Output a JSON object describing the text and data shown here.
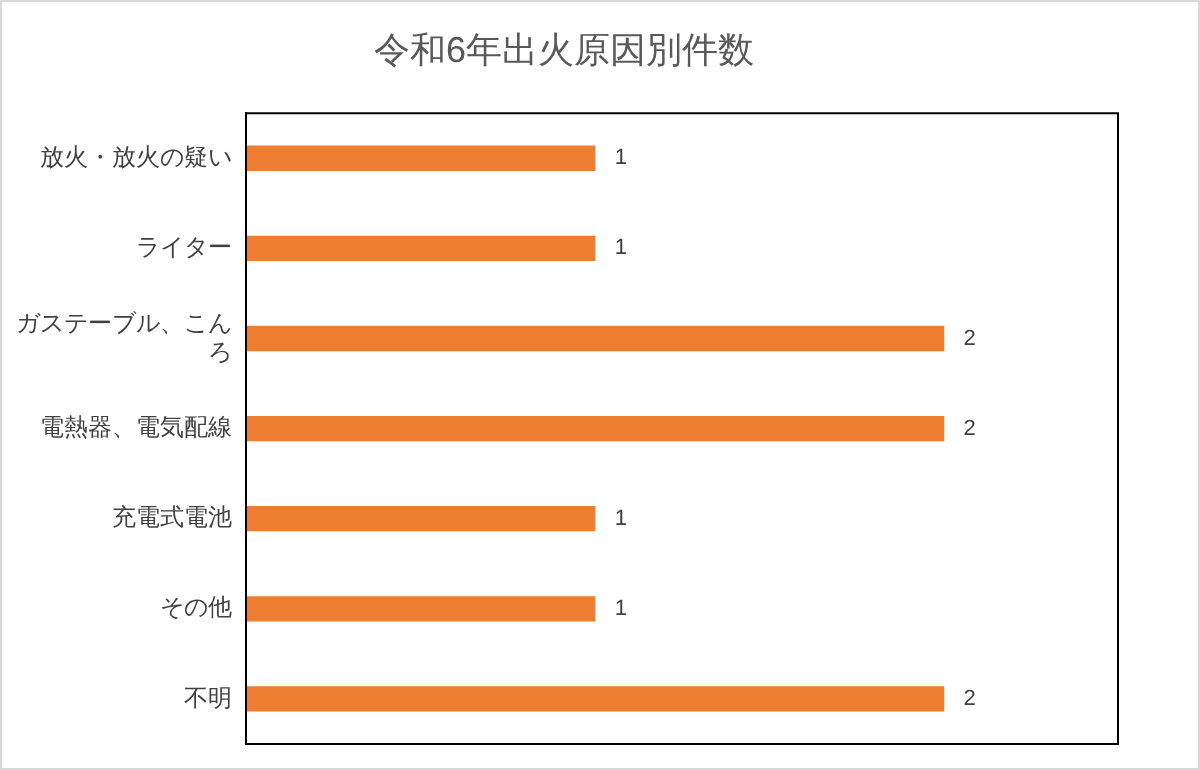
{
  "chart_data": {
    "type": "bar",
    "orientation": "horizontal",
    "title": "令和6年出火原因別件数",
    "categories": [
      "放火・放火の疑い",
      "ライター",
      "ガステーブル、こんろ",
      "電熱器、電気配線",
      "充電式電池",
      "その他",
      "不明"
    ],
    "values": [
      1,
      1,
      2,
      2,
      1,
      1,
      2
    ],
    "color": "#ed7d31",
    "data_labels": true,
    "grid": false,
    "legend": false,
    "tick_labels": "y"
  }
}
